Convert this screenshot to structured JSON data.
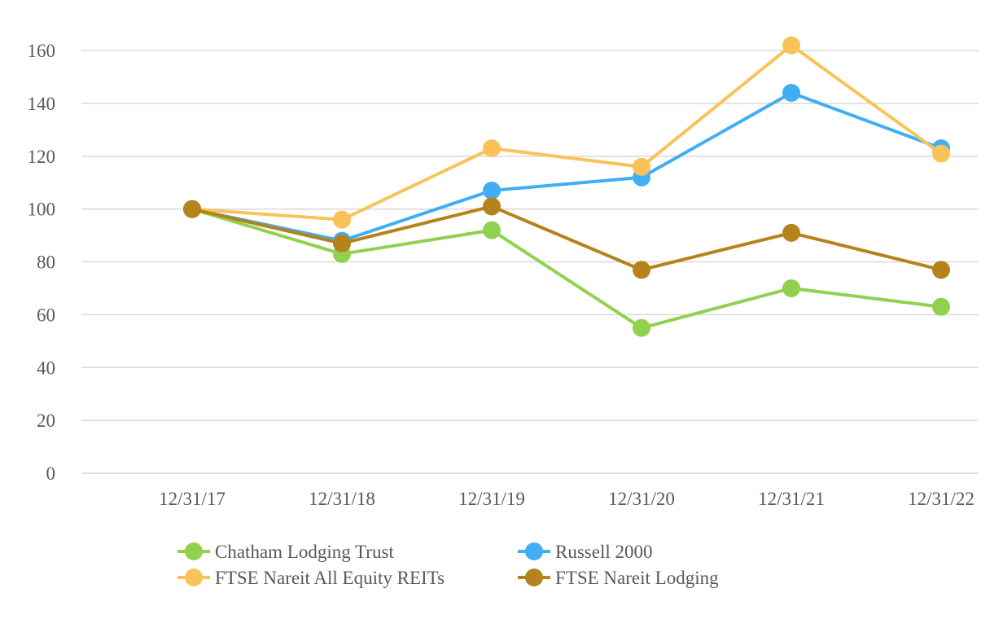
{
  "chart_data": {
    "type": "line",
    "title": "",
    "xlabel": "",
    "ylabel": "",
    "categories": [
      "12/31/17",
      "12/31/18",
      "12/31/19",
      "12/31/20",
      "12/31/21",
      "12/31/22"
    ],
    "y_ticks": [
      "0",
      "20",
      "40",
      "60",
      "80",
      "100",
      "120",
      "140",
      "160"
    ],
    "ylim": [
      0,
      170
    ],
    "grid": true,
    "legend_position": "bottom",
    "series": [
      {
        "name": "Chatham Lodging Trust",
        "color": "#92d050",
        "values": [
          100,
          83,
          92,
          55,
          70,
          63
        ]
      },
      {
        "name": "Russell 2000",
        "color": "#41aef4",
        "values": [
          100,
          88,
          107,
          112,
          144,
          123
        ]
      },
      {
        "name": "FTSE Nareit All Equity REITs",
        "color": "#f9c35a",
        "values": [
          100,
          96,
          123,
          116,
          162,
          121
        ]
      },
      {
        "name": "FTSE Nareit Lodging",
        "color": "#b5831c",
        "values": [
          100,
          87,
          101,
          77,
          91,
          77
        ]
      }
    ]
  }
}
